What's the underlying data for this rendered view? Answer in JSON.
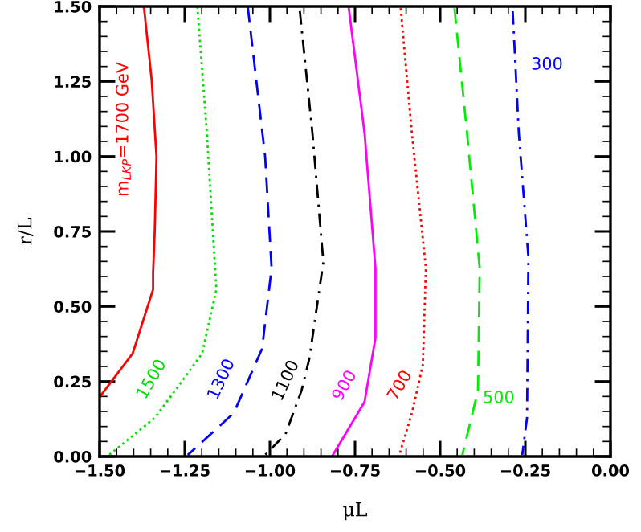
{
  "chart_data": {
    "type": "line",
    "xlabel": "μL",
    "ylabel": "r/L",
    "xlim": [
      -1.5,
      0.0
    ],
    "ylim": [
      0.0,
      1.5
    ],
    "xticks": [
      {
        "value": -1.5,
        "label": "−1.50"
      },
      {
        "value": -1.25,
        "label": "−1.25"
      },
      {
        "value": -1.0,
        "label": "−1.00"
      },
      {
        "value": -0.75,
        "label": "−0.75"
      },
      {
        "value": -0.5,
        "label": "−0.50"
      },
      {
        "value": -0.25,
        "label": "−0.25"
      },
      {
        "value": 0.0,
        "label": "0.00"
      }
    ],
    "yticks": [
      {
        "value": 0.0,
        "label": "0.00"
      },
      {
        "value": 0.25,
        "label": "0.25"
      },
      {
        "value": 0.5,
        "label": "0.50"
      },
      {
        "value": 0.75,
        "label": "0.75"
      },
      {
        "value": 1.0,
        "label": "1.00"
      },
      {
        "value": 1.25,
        "label": "1.25"
      },
      {
        "value": 1.5,
        "label": "1.50"
      }
    ],
    "grid": false,
    "legend": false,
    "marker": "none",
    "series": [
      {
        "name": "m$_{LKP}$=1700 GeV",
        "color": "#ff0000",
        "line_style": "solid",
        "x": [
          -1.37,
          -1.347,
          -1.333,
          -1.338,
          -1.343,
          -1.343,
          -1.403,
          -1.5
        ],
        "values": [
          1.5,
          1.253,
          1.0,
          0.755,
          0.611,
          0.557,
          0.343,
          0.198
        ]
      },
      {
        "name": "1500",
        "color": "#00dd00",
        "line_style": "dotted",
        "x": [
          -1.213,
          -1.185,
          -1.162,
          -1.157,
          -1.199,
          -1.278,
          -1.338,
          -1.472
        ],
        "values": [
          1.5,
          1.077,
          0.648,
          0.557,
          0.343,
          0.22,
          0.129,
          0.005
        ]
      },
      {
        "name": "1300",
        "color": "#0000ff",
        "line_style": "dashed",
        "x": [
          -1.065,
          -1.014,
          -0.995,
          -1.023,
          -1.106,
          -1.241
        ],
        "values": [
          1.5,
          1.0,
          0.627,
          0.359,
          0.145,
          0.005
        ]
      },
      {
        "name": "1100",
        "color": "#000000",
        "line_style": "dashdot",
        "x": [
          -0.912,
          -0.875,
          -0.843,
          -0.884,
          -0.907,
          -0.954,
          -1.014
        ],
        "values": [
          1.484,
          1.077,
          0.648,
          0.327,
          0.22,
          0.075,
          0.005
        ]
      },
      {
        "name": "900",
        "color": "#ff00ff",
        "line_style": "solid",
        "x": [
          -0.769,
          -0.722,
          -0.69,
          -0.69,
          -0.722,
          -0.815
        ],
        "values": [
          1.5,
          1.077,
          0.627,
          0.396,
          0.182,
          0.005
        ]
      },
      {
        "name": "700",
        "color": "#ff0000",
        "line_style": "dotted",
        "x": [
          -0.616,
          -0.583,
          -0.542,
          -0.551,
          -0.583,
          -0.62
        ],
        "values": [
          1.494,
          1.077,
          0.627,
          0.305,
          0.145,
          0.005
        ]
      },
      {
        "name": "500",
        "color": "#00ee00",
        "line_style": "dashed",
        "x": [
          -0.458,
          -0.421,
          -0.384,
          -0.389,
          -0.435
        ],
        "values": [
          1.494,
          1.077,
          0.627,
          0.22,
          0.005
        ]
      },
      {
        "name": "300",
        "color": "#0000ff",
        "line_style": "dashdot",
        "x": [
          -0.287,
          -0.269,
          -0.241,
          -0.245,
          -0.259
        ],
        "values": [
          1.484,
          1.077,
          0.664,
          0.129,
          0.005
        ]
      }
    ]
  }
}
